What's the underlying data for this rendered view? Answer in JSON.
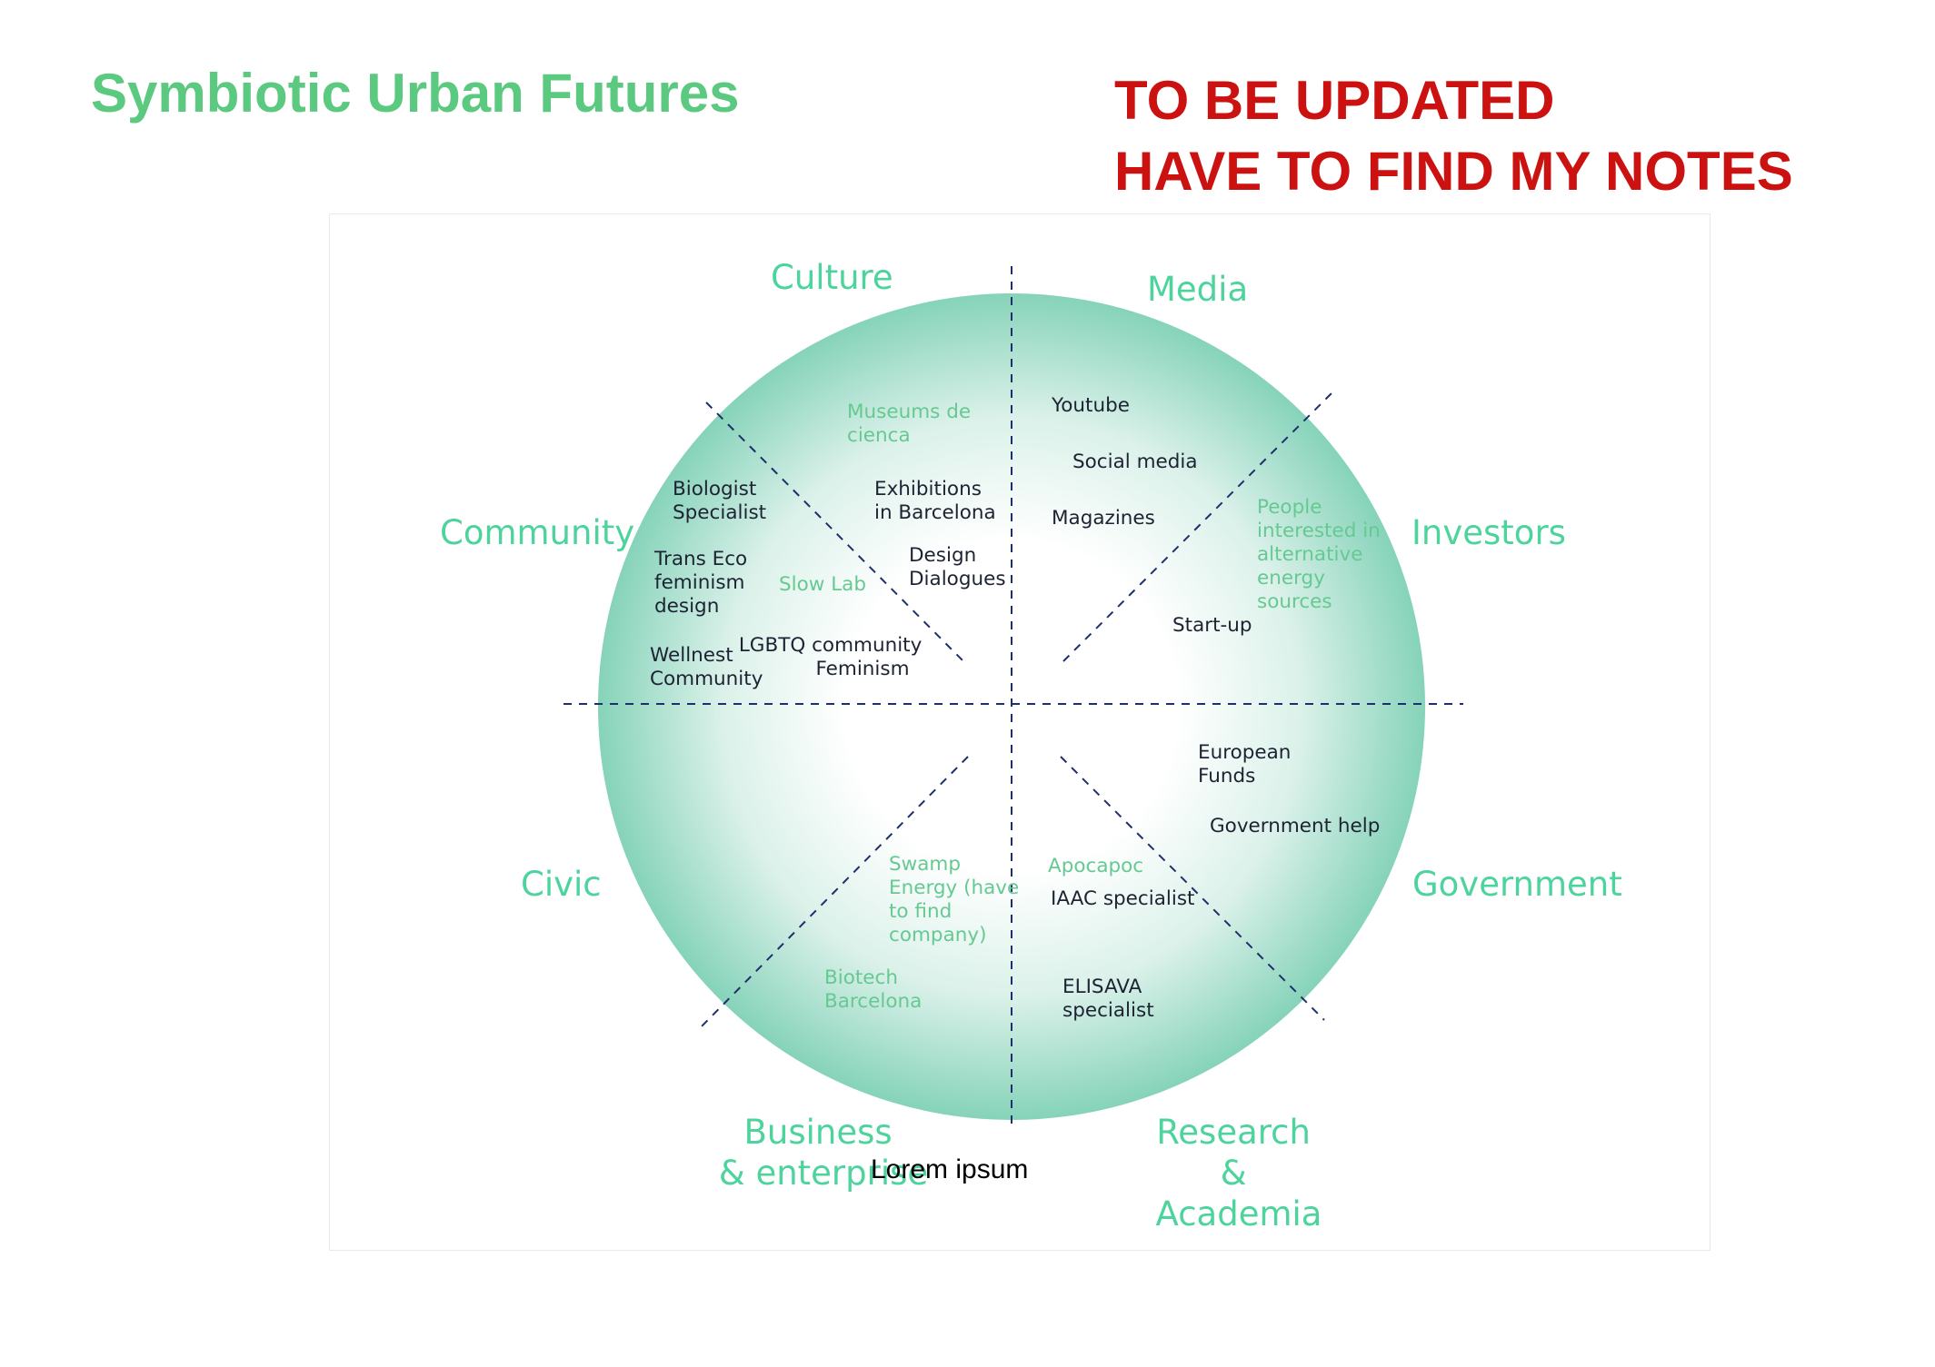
{
  "title": "Symbiotic Urban Futures",
  "notice": {
    "line1": "TO BE UPDATED",
    "line2": "HAVE TO FIND MY NOTES"
  },
  "colors": {
    "title": "#5bc97f",
    "notice": "#cc1111",
    "sector_label": "#4dd39c",
    "circle_edge": "#7fd3b8",
    "divider": "#1f2f6b",
    "item_dark": "#1d2333",
    "item_green": "#66c992"
  },
  "sectors": {
    "culture": "Culture",
    "media": "Media",
    "community": "Community",
    "investors": "Investors",
    "civic": "Civic",
    "government": "Government",
    "business": [
      "Business",
      "& enterprise"
    ],
    "research": [
      "Research",
      "&",
      "Academia"
    ]
  },
  "items": {
    "museums": [
      "Museums de",
      "cienca"
    ],
    "exhibitions": [
      "Exhibitions",
      "in Barcelona"
    ],
    "design_dialogues": [
      "Design",
      "Dialogues"
    ],
    "biologist": [
      "Biologist",
      "Specialist"
    ],
    "trans_eco": [
      "Trans Eco",
      "feminism",
      "design"
    ],
    "slow_lab": "Slow Lab",
    "wellnest": [
      "Wellnest",
      "Community"
    ],
    "lgbtq": [
      "LGBTQ community",
      "Feminism"
    ],
    "youtube": "Youtube",
    "social_media": "Social media",
    "magazines": "Magazines",
    "people_interested": [
      "People",
      "interested in",
      "alternative",
      "energy",
      "sources"
    ],
    "startup": "Start-up",
    "european_funds": [
      "European",
      "Funds"
    ],
    "government_help": "Government help",
    "apocapoc": "Apocapoc",
    "iaac": "IAAC specialist",
    "elisava": [
      "ELISAVA",
      "specialist"
    ],
    "swamp_energy": [
      "Swamp",
      "Energy (have",
      "to find",
      "company)"
    ],
    "biotech": [
      "Biotech",
      "Barcelona"
    ]
  },
  "lorem": "Lorem ipsum"
}
